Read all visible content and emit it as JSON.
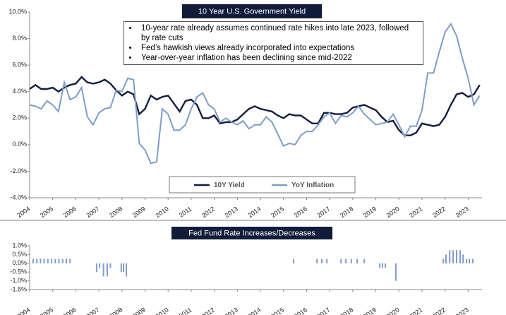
{
  "chart_data": [
    {
      "type": "line",
      "title": "10 Year U.S. Government Yield",
      "annotations": [
        "10-year rate already assumes continued rate hikes into late 2023, followed by rate cuts",
        "Fed’s hawkish views already incorporated into expectations",
        "Year-over-year inflation has been declining since mid-2022"
      ],
      "x": [
        2004,
        2004.25,
        2004.5,
        2004.75,
        2005,
        2005.25,
        2005.5,
        2005.75,
        2006,
        2006.25,
        2006.5,
        2006.75,
        2007,
        2007.25,
        2007.5,
        2007.75,
        2008,
        2008.25,
        2008.5,
        2008.75,
        2009,
        2009.25,
        2009.5,
        2009.75,
        2010,
        2010.25,
        2010.5,
        2010.75,
        2011,
        2011.25,
        2011.5,
        2011.75,
        2012,
        2012.25,
        2012.5,
        2012.75,
        2013,
        2013.25,
        2013.5,
        2013.75,
        2014,
        2014.25,
        2014.5,
        2014.75,
        2015,
        2015.25,
        2015.5,
        2015.75,
        2016,
        2016.25,
        2016.5,
        2016.75,
        2017,
        2017.25,
        2017.5,
        2017.75,
        2018,
        2018.25,
        2018.5,
        2018.75,
        2019,
        2019.25,
        2019.5,
        2019.75,
        2020,
        2020.25,
        2020.5,
        2020.75,
        2021,
        2021.25,
        2021.5,
        2021.75,
        2022,
        2022.25,
        2022.5,
        2022.75,
        2023,
        2023.25,
        2023.5
      ],
      "series": [
        {
          "name": "10Y Yield",
          "color": "#141c3f",
          "values": [
            4.2,
            4.5,
            4.2,
            4.2,
            4.3,
            4.0,
            4.3,
            4.5,
            4.6,
            5.1,
            4.7,
            4.6,
            4.7,
            4.9,
            4.6,
            4.1,
            3.7,
            4.0,
            3.8,
            2.3,
            2.7,
            3.7,
            3.4,
            3.6,
            3.7,
            3.1,
            2.5,
            3.3,
            3.4,
            3.0,
            2.0,
            2.0,
            2.2,
            1.6,
            1.7,
            1.7,
            1.9,
            2.3,
            2.7,
            2.9,
            2.7,
            2.6,
            2.5,
            2.2,
            2.0,
            2.3,
            2.2,
            2.2,
            1.9,
            1.6,
            1.6,
            2.4,
            2.4,
            2.3,
            2.3,
            2.4,
            2.8,
            2.9,
            3.0,
            2.8,
            2.6,
            2.1,
            1.7,
            1.8,
            1.1,
            0.7,
            0.7,
            0.9,
            1.6,
            1.5,
            1.4,
            1.5,
            2.1,
            3.0,
            3.8,
            3.9,
            3.6,
            3.8,
            4.5
          ]
        },
        {
          "name": "YoY Inflation",
          "color": "#7f9cc9",
          "values": [
            3.0,
            2.9,
            2.7,
            3.3,
            3.0,
            2.5,
            4.7,
            3.4,
            3.6,
            4.3,
            2.1,
            1.5,
            2.4,
            2.7,
            2.8,
            4.1,
            4.0,
            5.0,
            4.9,
            0.1,
            -0.4,
            -1.4,
            -1.3,
            2.7,
            2.3,
            1.1,
            1.1,
            1.5,
            2.7,
            3.6,
            3.9,
            3.0,
            2.7,
            1.7,
            2.0,
            1.7,
            1.5,
            1.8,
            1.2,
            1.5,
            1.5,
            2.1,
            1.7,
            0.8,
            -0.1,
            0.1,
            0.0,
            0.7,
            1.0,
            1.0,
            1.5,
            2.1,
            2.4,
            1.6,
            2.2,
            2.1,
            2.4,
            2.9,
            2.3,
            1.9,
            1.5,
            1.6,
            1.7,
            2.3,
            1.5,
            0.6,
            1.4,
            1.4,
            2.6,
            5.4,
            5.4,
            7.0,
            8.5,
            9.1,
            8.2,
            6.5,
            5.0,
            3.0,
            3.7
          ]
        }
      ],
      "xlim": [
        2004,
        2023.6
      ],
      "xticks": [
        2004,
        2005,
        2006,
        2007,
        2008,
        2009,
        2010,
        2011,
        2012,
        2013,
        2014,
        2015,
        2016,
        2017,
        2018,
        2019,
        2020,
        2021,
        2022,
        2023
      ],
      "ylim": [
        -4,
        10
      ],
      "yticks": [
        {
          "value": 10,
          "label": "10.0%"
        },
        {
          "value": 8,
          "label": "8.0%"
        },
        {
          "value": 6,
          "label": "6.0%"
        },
        {
          "value": 4,
          "label": "4.0%"
        },
        {
          "value": 2,
          "label": "2.0%"
        },
        {
          "value": 0,
          "label": "0.0%"
        },
        {
          "value": -2,
          "label": "-2.0%"
        },
        {
          "value": -4,
          "label": "-4.0%"
        }
      ],
      "legend": "bottom"
    },
    {
      "type": "bar",
      "title": "Fed Fund Rate Increases/Decreases",
      "color": "#7f9cc9",
      "x": [
        2004.15,
        2004.31,
        2004.47,
        2004.63,
        2004.79,
        2004.95,
        2005.11,
        2005.27,
        2005.43,
        2005.59,
        2005.75,
        2006.9,
        2007.03,
        2007.2,
        2007.36,
        2007.5,
        2007.97,
        2008.07,
        2008.19,
        2015.44,
        2016.45,
        2016.66,
        2016.88,
        2017.49,
        2017.7,
        2017.94,
        2018.19,
        2018.5,
        2019.17,
        2019.29,
        2019.41,
        2019.87,
        2021.92,
        2022.04,
        2022.2,
        2022.35,
        2022.5,
        2022.65,
        2022.78,
        2022.93,
        2023.05,
        2023.2
      ],
      "values": [
        0.25,
        0.25,
        0.25,
        0.25,
        0.25,
        0.25,
        0.25,
        0.25,
        0.25,
        0.25,
        0.25,
        -0.5,
        -0.25,
        -0.75,
        -0.75,
        -0.25,
        -0.5,
        -0.5,
        -0.75,
        0.25,
        0.25,
        0.25,
        0.25,
        0.25,
        0.25,
        0.25,
        0.25,
        0.25,
        -0.25,
        -0.25,
        -0.25,
        -1.0,
        0.25,
        0.5,
        0.75,
        0.75,
        0.75,
        0.75,
        0.5,
        0.25,
        0.25,
        0.25
      ],
      "xlim": [
        2004,
        2023.6
      ],
      "xticks": [
        2004,
        2005,
        2006,
        2007,
        2008,
        2009,
        2010,
        2011,
        2012,
        2013,
        2014,
        2015,
        2016,
        2017,
        2018,
        2019,
        2020,
        2021,
        2022,
        2023
      ],
      "ylim": [
        -1.5,
        1.0
      ],
      "yticks": [
        {
          "value": 1.0,
          "label": "1.0%"
        },
        {
          "value": 0.5,
          "label": "0.5%"
        },
        {
          "value": 0.0,
          "label": "0.0%"
        },
        {
          "value": -0.5,
          "label": "-0.5%"
        },
        {
          "value": -1.0,
          "label": "-1.0%"
        },
        {
          "value": -1.5,
          "label": "-1.5%"
        }
      ]
    }
  ]
}
